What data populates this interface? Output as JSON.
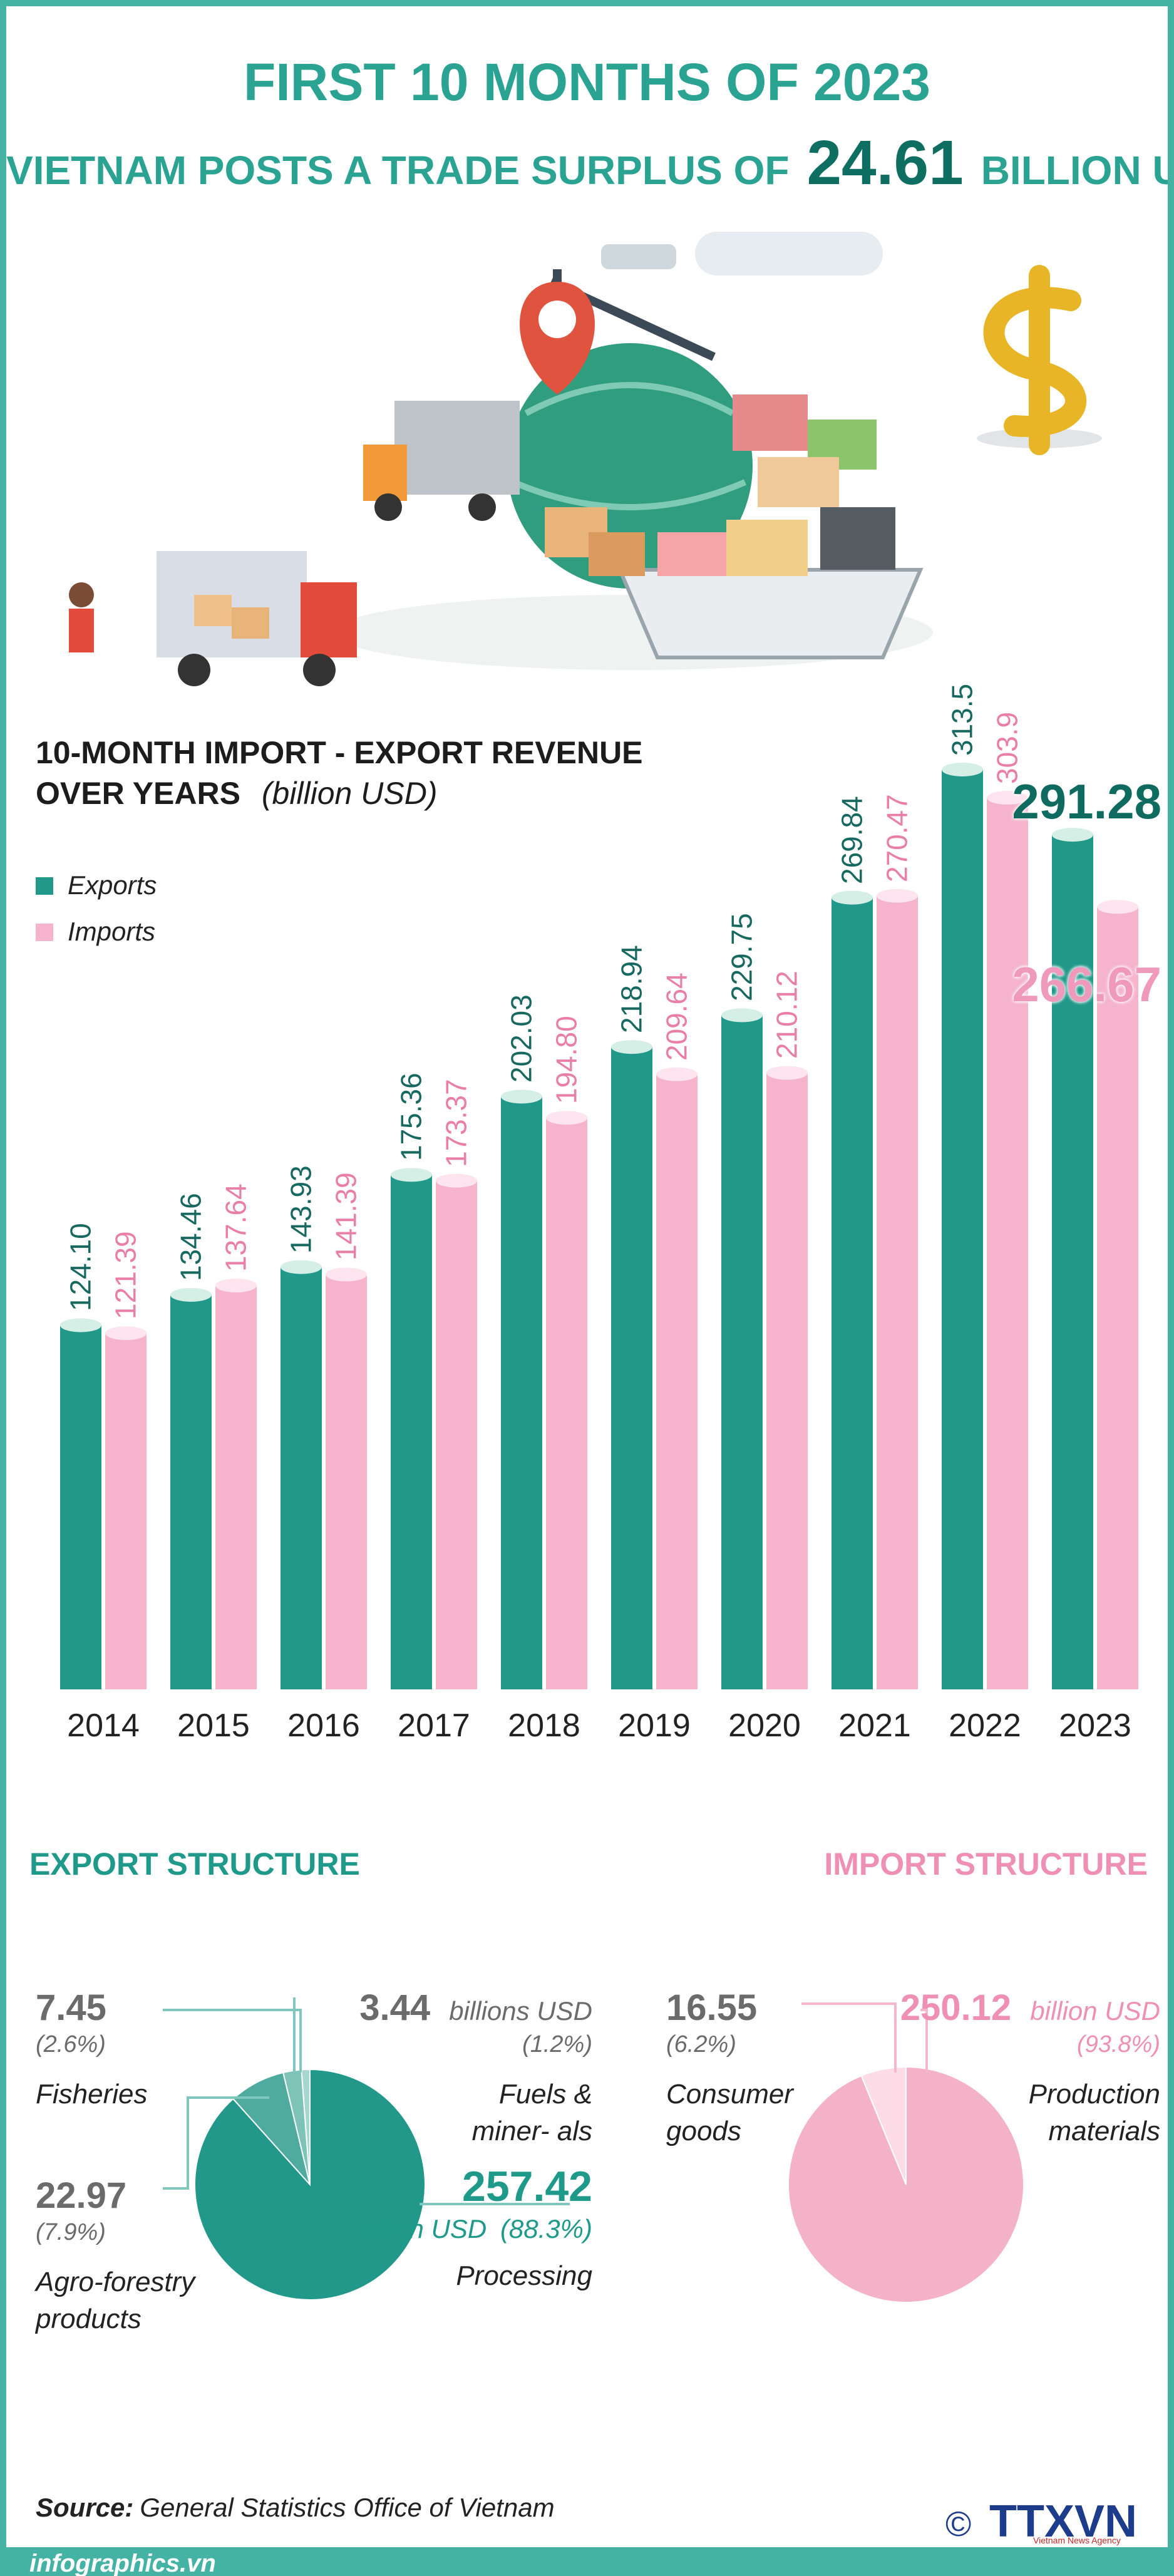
{
  "header": {
    "title": "FIRST 10 MONTHS OF 2023",
    "subtitle_before": "VIETNAM POSTS A TRADE SURPLUS OF",
    "surplus": "24.61",
    "subtitle_after": "BILLION USD"
  },
  "chart_data": [
    {
      "type": "bar",
      "title": "10-MONTH IMPORT - EXPORT REVENUE OVER YEARS",
      "unit": "(billion USD)",
      "categories": [
        "2014",
        "2015",
        "2016",
        "2017",
        "2018",
        "2019",
        "2020",
        "2021",
        "2022",
        "2023"
      ],
      "series": [
        {
          "name": "Exports",
          "color": "#21988a",
          "values": [
            124.1,
            134.46,
            143.93,
            175.36,
            202.03,
            218.94,
            229.75,
            269.84,
            313.5,
            291.28
          ],
          "value_labels": [
            "124.10",
            "134.46",
            "143.93",
            "175.36",
            "202.03",
            "218.94",
            "229.75",
            "269.84",
            "313.5",
            "291.28"
          ]
        },
        {
          "name": "Imports",
          "color": "#f5b4cc",
          "values": [
            121.39,
            137.64,
            141.39,
            173.37,
            194.8,
            209.64,
            210.12,
            270.47,
            303.9,
            266.67
          ],
          "value_labels": [
            "121.39",
            "137.64",
            "141.39",
            "173.37",
            "194.80",
            "209.64",
            "210.12",
            "270.47",
            "303.9",
            "266.67"
          ]
        }
      ],
      "legend": "top-left"
    },
    {
      "type": "pie",
      "title": "EXPORT STRUCTURE",
      "slices": [
        {
          "name": "Fuels & miner- als",
          "value": 3.44,
          "unit": "billions USD",
          "share": 1.2,
          "share_label": "(1.2%)",
          "color": "#a6d8d0"
        },
        {
          "name": "Fisheries",
          "value": 7.45,
          "share": 2.6,
          "share_label": "(2.6%)",
          "color": "#7dc3b8"
        },
        {
          "name": "Agro-forestry products",
          "value": 22.97,
          "share": 7.9,
          "share_label": "(7.9%)",
          "color": "#4fab9e"
        },
        {
          "name": "Processing",
          "value": 257.42,
          "unit": "billion USD",
          "share": 88.3,
          "share_label": "(88.3%)",
          "color": "#21988a"
        }
      ]
    },
    {
      "type": "pie",
      "title": "IMPORT STRUCTURE",
      "slices": [
        {
          "name": "Consumer goods",
          "value": 16.55,
          "share": 6.2,
          "share_label": "(6.2%)",
          "color": "#fbdce7"
        },
        {
          "name": "Production materials",
          "value": 250.12,
          "unit": "billion USD",
          "share": 93.8,
          "share_label": "(93.8%)",
          "color": "#f4b2c9"
        }
      ]
    }
  ],
  "source": {
    "label": "Source:",
    "text": "General Statistics Office of Vietnam"
  },
  "footer": {
    "site": "infographics.vn",
    "copyright": "©",
    "logo": "TTXVN",
    "agency": "Vietnam News Agency"
  }
}
